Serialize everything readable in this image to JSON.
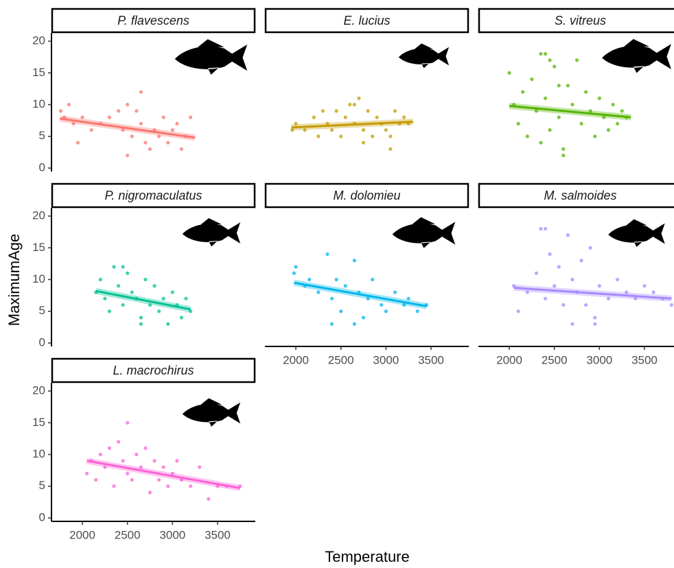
{
  "chart_data": {
    "type": "scatter",
    "x_label": "Temperature",
    "y_label": "MaximumAge",
    "xlim": [
      1657,
      3919
    ],
    "ylim": [
      -0.54,
      21.3
    ],
    "xticks": [
      2000,
      2500,
      3000,
      3500
    ],
    "yticks": [
      0,
      5,
      10,
      15,
      20
    ],
    "series": [
      {
        "name": "P. flavescens",
        "color": "#F8766D",
        "x": [
          1760,
          1800,
          1850,
          1900,
          1950,
          2000,
          2100,
          2200,
          2300,
          2400,
          2450,
          2500,
          2550,
          2600,
          2650,
          2700,
          2750,
          2800,
          2850,
          2900,
          2950,
          3000,
          3050,
          3100,
          3150,
          3200,
          2650,
          2500
        ],
        "values": [
          9,
          8,
          10,
          7,
          4,
          8,
          6,
          7,
          8,
          9,
          6,
          10,
          5,
          9,
          7,
          4,
          3,
          6,
          5,
          8,
          4,
          6,
          7,
          3,
          5,
          8,
          12,
          2
        ],
        "trend_x": [
          1750,
          3250
        ],
        "trend_values": [
          7.8,
          4.8
        ]
      },
      {
        "name": "E. lucius",
        "color": "#C49A00",
        "x": [
          1960,
          2000,
          2100,
          2200,
          2250,
          2300,
          2350,
          2400,
          2450,
          2500,
          2550,
          2600,
          2650,
          2700,
          2750,
          2800,
          2850,
          2900,
          2950,
          3000,
          3050,
          3100,
          3150,
          3200,
          3250,
          2650,
          2750,
          3050
        ],
        "values": [
          6,
          7,
          6,
          8,
          5,
          9,
          7,
          6,
          9,
          5,
          8,
          10,
          7,
          11,
          6,
          9,
          5,
          8,
          7,
          6,
          3,
          9,
          7,
          8,
          7,
          10,
          4,
          5
        ],
        "trend_x": [
          1950,
          3300
        ],
        "trend_values": [
          6.4,
          7.3
        ]
      },
      {
        "name": "S. vitreus",
        "color": "#53B400",
        "x": [
          2000,
          2050,
          2100,
          2150,
          2200,
          2250,
          2300,
          2350,
          2400,
          2450,
          2500,
          2550,
          2600,
          2650,
          2700,
          2750,
          2800,
          2850,
          2900,
          2950,
          3000,
          3050,
          3100,
          3150,
          3200,
          3250,
          3300,
          2400,
          2600,
          2550,
          2350,
          2450
        ],
        "values": [
          15,
          10,
          7,
          12,
          5,
          14,
          9,
          18,
          11,
          6,
          16,
          8,
          3,
          13,
          10,
          17,
          7,
          12,
          9,
          5,
          11,
          8,
          6,
          10,
          7,
          9,
          8,
          18,
          2,
          13,
          4,
          17
        ],
        "trend_x": [
          2000,
          3350
        ],
        "trend_values": [
          9.8,
          8.0
        ]
      },
      {
        "name": "P. nigromaculatus",
        "color": "#00C094",
        "x": [
          2150,
          2200,
          2250,
          2300,
          2350,
          2400,
          2450,
          2500,
          2550,
          2600,
          2650,
          2700,
          2750,
          2800,
          2850,
          2900,
          2950,
          3000,
          3050,
          3100,
          3150,
          3200,
          2450,
          2650
        ],
        "values": [
          8,
          10,
          7,
          5,
          12,
          9,
          6,
          11,
          8,
          7,
          4,
          10,
          6,
          9,
          5,
          7,
          3,
          8,
          6,
          4,
          7,
          5,
          12,
          3
        ],
        "trend_x": [
          2150,
          3200
        ],
        "trend_values": [
          8.2,
          5.3
        ]
      },
      {
        "name": "M. dolomieu",
        "color": "#00B6EB",
        "x": [
          1980,
          2000,
          2100,
          2150,
          2250,
          2350,
          2400,
          2450,
          2500,
          2550,
          2650,
          2700,
          2750,
          2800,
          2850,
          2950,
          3000,
          3100,
          3200,
          3250,
          3350,
          3450,
          2650,
          2400
        ],
        "values": [
          11,
          12,
          9,
          10,
          8,
          14,
          7,
          10,
          5,
          9,
          13,
          8,
          4,
          7,
          10,
          6,
          5,
          8,
          6,
          7,
          5,
          6,
          3,
          3
        ],
        "trend_x": [
          1980,
          3450
        ],
        "trend_values": [
          9.5,
          5.8
        ]
      },
      {
        "name": "M. salmoides",
        "color": "#A58AFF",
        "x": [
          2050,
          2100,
          2200,
          2300,
          2350,
          2400,
          2450,
          2500,
          2550,
          2600,
          2650,
          2700,
          2750,
          2800,
          2850,
          2900,
          2950,
          3000,
          3100,
          3200,
          3300,
          3400,
          3500,
          3600,
          3700,
          3800,
          2400,
          2700,
          2950
        ],
        "values": [
          9,
          5,
          8,
          11,
          18,
          7,
          14,
          9,
          12,
          6,
          17,
          10,
          8,
          13,
          6,
          15,
          4,
          9,
          7,
          10,
          8,
          7,
          9,
          8,
          7,
          6,
          18,
          3,
          3
        ],
        "trend_x": [
          2050,
          3800
        ],
        "trend_values": [
          8.7,
          7.0
        ]
      },
      {
        "name": "L. macrochirus",
        "color": "#FB61D7",
        "x": [
          2050,
          2100,
          2150,
          2200,
          2250,
          2300,
          2350,
          2400,
          2450,
          2500,
          2550,
          2600,
          2650,
          2700,
          2750,
          2800,
          2850,
          2900,
          2950,
          3000,
          3050,
          3100,
          3200,
          3300,
          3400,
          3500,
          3600,
          3750,
          2500
        ],
        "values": [
          7,
          9,
          6,
          10,
          8,
          11,
          5,
          12,
          9,
          7,
          6,
          10,
          8,
          11,
          4,
          9,
          6,
          8,
          5,
          7,
          9,
          6,
          5,
          8,
          3,
          5,
          5,
          5,
          15
        ],
        "trend_x": [
          2050,
          3750
        ],
        "trend_values": [
          9.0,
          4.7
        ]
      }
    ]
  }
}
